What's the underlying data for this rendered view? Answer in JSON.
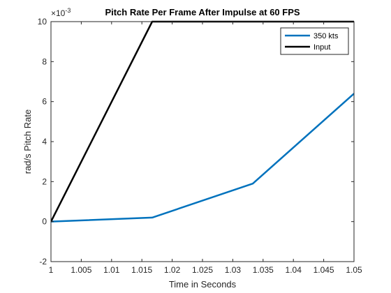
{
  "chart_data": {
    "type": "line",
    "title": "Pitch Rate Per Frame After Impulse at 60 FPS",
    "xlabel": "Time in Seconds",
    "ylabel": "rad/s Pitch Rate",
    "y_exponent_label": "×10",
    "y_exponent": "-3",
    "xlim": [
      1,
      1.05
    ],
    "ylim": [
      -2,
      10
    ],
    "x_ticks": [
      1,
      1.005,
      1.01,
      1.015,
      1.02,
      1.025,
      1.03,
      1.035,
      1.04,
      1.045,
      1.05
    ],
    "x_tick_labels": [
      "1",
      "1.005",
      "1.01",
      "1.015",
      "1.02",
      "1.025",
      "1.03",
      "1.035",
      "1.04",
      "1.045",
      "1.05"
    ],
    "y_ticks": [
      -2,
      0,
      2,
      4,
      6,
      8,
      10
    ],
    "y_tick_labels": [
      "-2",
      "0",
      "2",
      "4",
      "6",
      "8",
      "10"
    ],
    "grid": false,
    "legend_position": "top-right",
    "series": [
      {
        "name": "350 kts",
        "color": "#0072BD",
        "x": [
          1,
          1.0167,
          1.0333,
          1.05
        ],
        "y": [
          0,
          0.2,
          1.9,
          6.4
        ]
      },
      {
        "name": "Input",
        "color": "#000000",
        "x": [
          1,
          1.0167,
          1.05
        ],
        "y": [
          0,
          10,
          10
        ]
      }
    ]
  }
}
